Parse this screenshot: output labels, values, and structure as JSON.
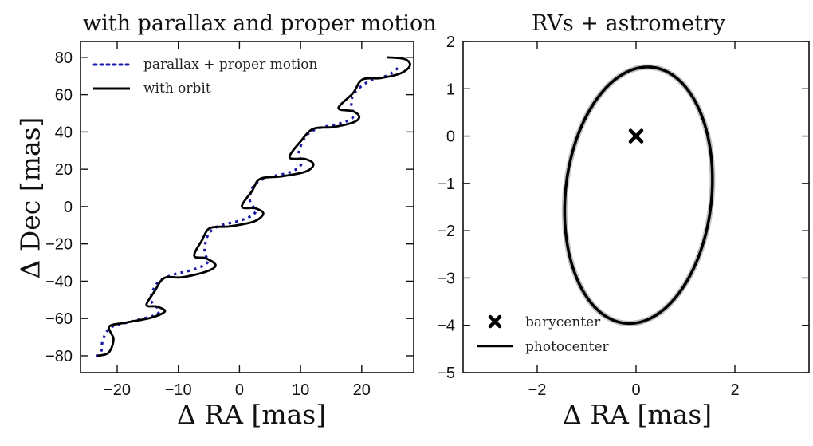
{
  "chart_data": [
    {
      "type": "line",
      "title": "with parallax and proper motion",
      "xlabel": "Δ RA [mas]",
      "ylabel": "Δ Dec [mas]",
      "xlim": [
        -26,
        28.5
      ],
      "ylim": [
        -89,
        88.5
      ],
      "xticks": [
        -20,
        -10,
        0,
        10,
        20
      ],
      "yticks": [
        -80,
        -60,
        -40,
        -20,
        0,
        20,
        40,
        60,
        80
      ],
      "xtick_labels": [
        "−20",
        "−10",
        "0",
        "10",
        "20"
      ],
      "ytick_labels": [
        "−80",
        "−60",
        "−40",
        "−20",
        "0",
        "20",
        "40",
        "60",
        "80"
      ],
      "grid": false,
      "legend_position": "upper left",
      "series": [
        {
          "name": "parallax + proper motion",
          "style": "dotted",
          "color": "#1a1aa8",
          "points": [
            [
              -23.2,
              -80.0
            ],
            [
              -22.6,
              -77.4
            ],
            [
              -22.3,
              -71.0
            ],
            [
              -21.0,
              -64.7
            ],
            [
              -17.8,
              -61.7
            ],
            [
              -13.9,
              -58.3
            ],
            [
              -13.2,
              -55.3
            ],
            [
              -14.5,
              -49.8
            ],
            [
              -13.5,
              -41.3
            ],
            [
              -11.3,
              -37.0
            ],
            [
              -7.4,
              -33.6
            ],
            [
              -5.2,
              -29.8
            ],
            [
              -5.7,
              -24.3
            ],
            [
              -5.2,
              -15.7
            ],
            [
              -3.5,
              -10.6
            ],
            [
              0.4,
              -7.2
            ],
            [
              2.6,
              -3.0
            ],
            [
              1.7,
              3.4
            ],
            [
              2.3,
              11.0
            ],
            [
              4.3,
              15.3
            ],
            [
              8.2,
              18.3
            ],
            [
              10.1,
              22.6
            ],
            [
              9.7,
              28.9
            ],
            [
              10.8,
              37.4
            ],
            [
              12.7,
              41.7
            ],
            [
              16.6,
              44.7
            ],
            [
              18.6,
              48.1
            ],
            [
              18.3,
              54.5
            ],
            [
              18.8,
              60.9
            ],
            [
              21.2,
              67.2
            ],
            [
              24.4,
              70.6
            ],
            [
              26.4,
              75.7
            ]
          ]
        },
        {
          "name": "with orbit",
          "style": "solid",
          "color": "#000000",
          "points": [
            [
              -23.2,
              -80.0
            ],
            [
              -21.4,
              -78.3
            ],
            [
              -20.6,
              -71.1
            ],
            [
              -21.3,
              -64.3
            ],
            [
              -18.4,
              -62.1
            ],
            [
              -14.5,
              -59.6
            ],
            [
              -12.2,
              -56.2
            ],
            [
              -13.5,
              -53.6
            ],
            [
              -15.2,
              -52.8
            ],
            [
              -13.9,
              -45.5
            ],
            [
              -12.3,
              -38.3
            ],
            [
              -9.4,
              -37.9
            ],
            [
              -5.5,
              -34.9
            ],
            [
              -3.9,
              -31.5
            ],
            [
              -5.5,
              -27.7
            ],
            [
              -7.4,
              -26.4
            ],
            [
              -6.1,
              -17.9
            ],
            [
              -4.8,
              -11.5
            ],
            [
              -1.6,
              -10.6
            ],
            [
              2.3,
              -8.1
            ],
            [
              3.9,
              -3.8
            ],
            [
              2.6,
              -0.9
            ],
            [
              0.4,
              0.0
            ],
            [
              2.1,
              8.5
            ],
            [
              3.4,
              14.9
            ],
            [
              6.9,
              16.2
            ],
            [
              10.8,
              18.7
            ],
            [
              12.1,
              22.6
            ],
            [
              10.8,
              25.5
            ],
            [
              8.2,
              26.4
            ],
            [
              10.1,
              35.3
            ],
            [
              12.1,
              41.7
            ],
            [
              15.3,
              42.6
            ],
            [
              18.6,
              45.1
            ],
            [
              19.6,
              48.1
            ],
            [
              18.6,
              51.1
            ],
            [
              16.2,
              52.8
            ],
            [
              18.6,
              60.9
            ],
            [
              20.1,
              68.1
            ],
            [
              23.1,
              68.9
            ],
            [
              26.4,
              71.5
            ],
            [
              27.9,
              75.7
            ],
            [
              27.0,
              79.1
            ],
            [
              24.2,
              80.0
            ]
          ]
        }
      ]
    },
    {
      "type": "line",
      "title": "RVs + astrometry",
      "xlabel": "Δ RA [mas]",
      "ylabel": "",
      "xlim": [
        -3.5,
        3.5
      ],
      "ylim": [
        -5,
        2
      ],
      "xticks": [
        -2,
        0,
        2
      ],
      "yticks": [
        -5,
        -4,
        -3,
        -2,
        -1,
        0,
        1,
        2
      ],
      "xtick_labels": [
        "−2",
        "0",
        "2"
      ],
      "ytick_labels": [
        "−5",
        "−4",
        "−3",
        "−2",
        "−1",
        "0",
        "1",
        "2"
      ],
      "grid": false,
      "legend_position": "lower left",
      "series": [
        {
          "name": "barycenter",
          "style": "marker-x",
          "color": "#000000",
          "points": [
            [
              0,
              0
            ]
          ]
        },
        {
          "name": "photocenter",
          "style": "solid",
          "color": "#000000",
          "ellipse": {
            "center": [
              0.05,
              -1.25
            ],
            "semi_major": 2.72,
            "semi_minor": 1.48,
            "tilt_deg": -5.5
          },
          "points": []
        }
      ]
    }
  ],
  "left_panel": {
    "title": "with parallax and proper motion",
    "xlabel": "Δ RA [mas]",
    "ylabel": "Δ Dec [mas]",
    "legend": [
      {
        "label": "parallax + proper motion"
      },
      {
        "label": "with orbit"
      }
    ]
  },
  "right_panel": {
    "title": "RVs + astrometry",
    "xlabel": "Δ RA [mas]",
    "legend": [
      {
        "label": "barycenter"
      },
      {
        "label": "photocenter"
      }
    ]
  }
}
